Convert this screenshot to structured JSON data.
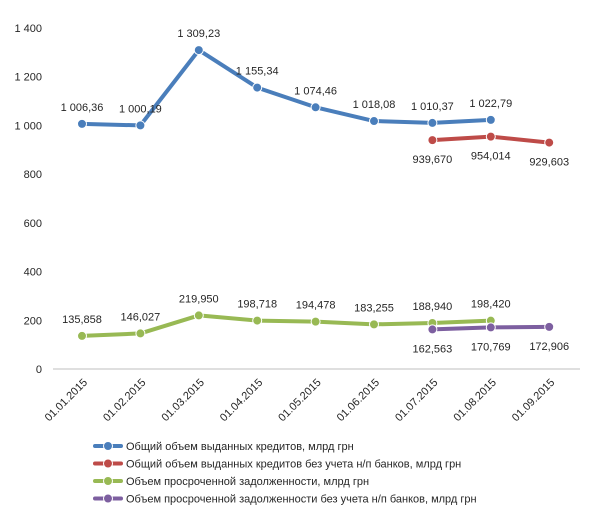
{
  "chart_data": {
    "type": "line",
    "categories": [
      "01.01.2015",
      "01.02.2015",
      "01.03.2015",
      "01.04.2015",
      "01.05.2015",
      "01.06.2015",
      "01.07.2015",
      "01.08.2015",
      "01.09.2015"
    ],
    "ylim": [
      0,
      1400
    ],
    "yticks": [
      0,
      200,
      400,
      600,
      800,
      1000,
      1200,
      1400
    ],
    "ytick_labels": [
      "0",
      "200",
      "400",
      "600",
      "800",
      "1 000",
      "1 200",
      "1 400"
    ],
    "grid": false,
    "legend_position": "bottom",
    "series": [
      {
        "name": "Общий объем выданных кредитов,  млрд грн",
        "color": "#4a7ebb",
        "values": [
          1006.36,
          1000.19,
          1309.23,
          1155.34,
          1074.46,
          1018.08,
          1010.37,
          1022.79,
          null
        ],
        "labels": [
          "1 006,36",
          "1 000,19",
          "1 309,23",
          "1 155,34",
          "1 074,46",
          "1 018,08",
          "1 010,37",
          "1 022,79",
          ""
        ],
        "label_pos": "above"
      },
      {
        "name": "Общий объем выданных кредитов без учета н/п банков, млрд грн",
        "color": "#be4b48",
        "values": [
          null,
          null,
          null,
          null,
          null,
          null,
          939.67,
          954.014,
          929.603
        ],
        "labels": [
          "",
          "",
          "",
          "",
          "",
          "",
          "939,670",
          "954,014",
          "929,603"
        ],
        "label_pos": "below"
      },
      {
        "name": "Объем просроченной задолженности, млрд грн",
        "color": "#98b954",
        "values": [
          135.858,
          146.027,
          219.95,
          198.718,
          194.478,
          183.255,
          188.94,
          198.42,
          null
        ],
        "labels": [
          "135,858",
          "146,027",
          "219,950",
          "198,718",
          "194,478",
          "183,255",
          "188,940",
          "198,420",
          ""
        ],
        "label_pos": "above"
      },
      {
        "name": "Объем просроченной задолженности без учета н/п банков, млрд грн",
        "color": "#7d5fa0",
        "values": [
          null,
          null,
          null,
          null,
          null,
          null,
          162.563,
          170.769,
          172.906
        ],
        "labels": [
          "",
          "",
          "",
          "",
          "",
          "",
          "162,563",
          "170,769",
          "172,906"
        ],
        "label_pos": "below"
      }
    ]
  }
}
